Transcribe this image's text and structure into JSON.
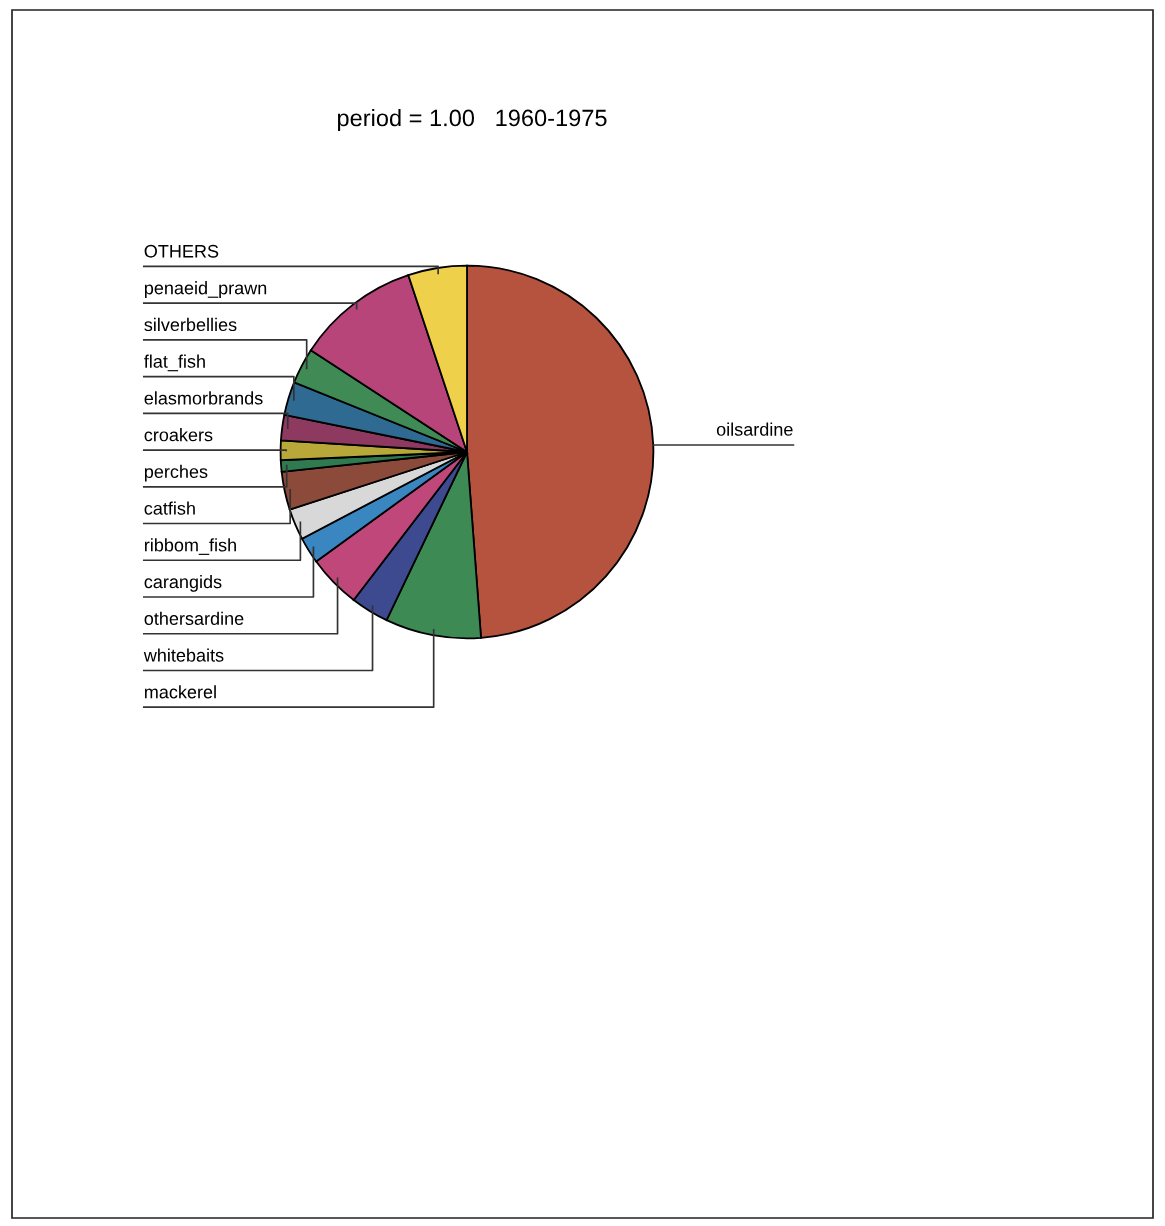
{
  "chart_data": {
    "type": "pie",
    "title": "period = 1.00   1960-1975",
    "categories": [
      "oilsardine",
      "mackerel",
      "whitebaits",
      "othersardine",
      "carangids",
      "ribbom_fish",
      "catfish",
      "perches",
      "croakers",
      "elasmorbrands",
      "flat_fish",
      "silverbellies",
      "penaeid_prawn",
      "OTHERS"
    ],
    "values": [
      48.8,
      8.3,
      3.3,
      4.6,
      2.3,
      2.7,
      3.3,
      1.0,
      1.7,
      2.2,
      2.9,
      3.1,
      10.7,
      5.1
    ],
    "colors": [
      "#b5533f",
      "#3e8a55",
      "#3d4a8f",
      "#c0477a",
      "#3a86c0",
      "#d8d8d8",
      "#8b4a3a",
      "#2f7a4f",
      "#b8a83a",
      "#8e3a60",
      "#2e6a92",
      "#3f8a55",
      "#b8457a",
      "#efd04a"
    ]
  }
}
